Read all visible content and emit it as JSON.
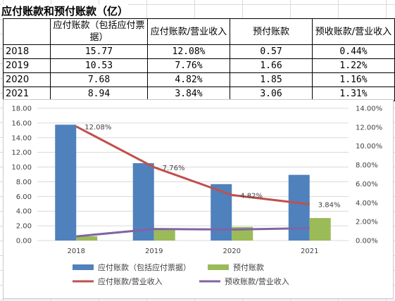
{
  "sheet": {
    "title": "应付账款和预付账款（亿）",
    "table": {
      "headers": [
        "",
        "应付账款（包括应付票据）",
        "应付账款/营业收入",
        "预付账款",
        "预收账款/营业收入"
      ],
      "rows": [
        [
          "2018",
          "15.77",
          "12.08%",
          "0.57",
          "0.44%"
        ],
        [
          "2019",
          "10.53",
          "7.76%",
          "1.66",
          "1.22%"
        ],
        [
          "2020",
          "7.68",
          "4.82%",
          "1.85",
          "1.16%"
        ],
        [
          "2021",
          "8.94",
          "3.84%",
          "3.06",
          "1.31%"
        ]
      ]
    }
  },
  "chart_data": {
    "type": "bar",
    "categories": [
      "2018",
      "2019",
      "2020",
      "2021"
    ],
    "series": [
      {
        "name": "应付账款（包括应付票据）",
        "type": "bar",
        "axis": "left",
        "values": [
          15.77,
          10.53,
          7.68,
          8.94
        ],
        "color": "#4f81bd"
      },
      {
        "name": "预付账款",
        "type": "bar",
        "axis": "left",
        "values": [
          0.57,
          1.66,
          1.85,
          3.06
        ],
        "color": "#9bbb59"
      },
      {
        "name": "应付账款/营业收入",
        "type": "line",
        "axis": "right",
        "values": [
          12.08,
          7.76,
          4.82,
          3.84
        ],
        "color": "#c0504d",
        "labels": [
          "12.08%",
          "7.76%",
          "4.82%",
          "3.84%"
        ]
      },
      {
        "name": "预收账款/营业收入",
        "type": "line",
        "axis": "right",
        "values": [
          0.44,
          1.22,
          1.16,
          1.31
        ],
        "color": "#8064a2"
      }
    ],
    "left_ticks": [
      "0.00",
      "2.00",
      "4.00",
      "6.00",
      "8.00",
      "10.00",
      "12.00",
      "14.00",
      "16.00",
      "18.00"
    ],
    "right_ticks": [
      "0.00%",
      "2.00%",
      "4.00%",
      "6.00%",
      "8.00%",
      "10.00%",
      "12.00%",
      "14.00%"
    ],
    "ylim_left": [
      0,
      18
    ],
    "ylim_right": [
      0,
      14
    ],
    "grid": true,
    "legend_position": "bottom"
  }
}
